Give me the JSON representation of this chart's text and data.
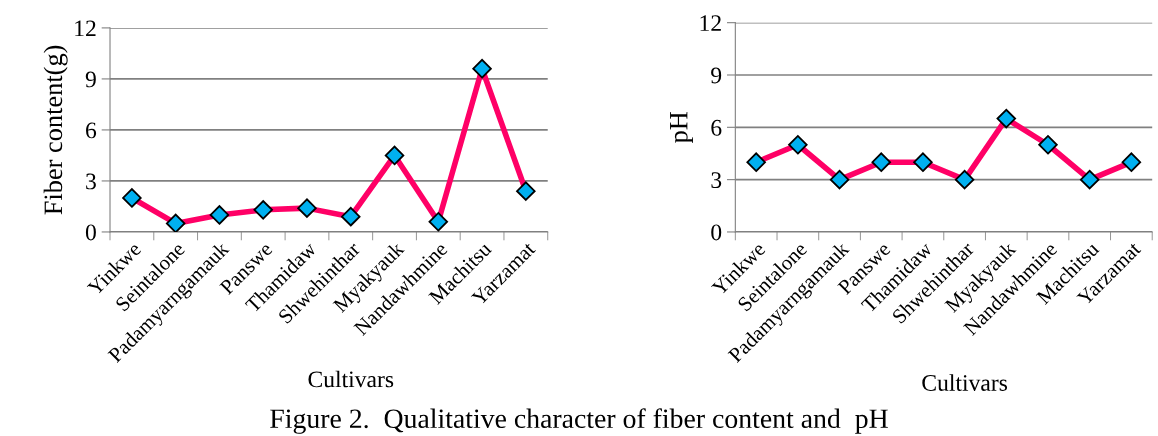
{
  "chart_data": [
    {
      "type": "line",
      "xlabel": "Cultivars",
      "ylabel": "Fiber content(g)",
      "categories": [
        "Yinkwe",
        "Seintalone",
        "Padamyarngamauk",
        "Panswe",
        "Thamidaw",
        "Shwehinthar",
        "Myakyauk",
        "Nandawhmine",
        "Machitsu",
        "Yarzamat"
      ],
      "series": [
        {
          "color": "#ff0066",
          "values": [
            2.0,
            0.5,
            1.0,
            1.3,
            1.4,
            0.9,
            4.5,
            0.6,
            9.6,
            2.4
          ]
        }
      ],
      "ylim": [
        0,
        12
      ],
      "yticks": [
        0,
        3,
        6,
        9,
        12
      ],
      "grid": "y",
      "marker": "diamond",
      "line_style": "solid",
      "annotations": [
        "Figure 2.  Qualitative character of fiber content and  pH"
      ]
    },
    {
      "type": "line",
      "xlabel": "Cultivars",
      "ylabel": "pH",
      "categories": [
        "Yinkwe",
        "Seintalone",
        "Padamyarngamauk",
        "Panswe",
        "Thamidaw",
        "Shwehinthar",
        "Myakyauk",
        "Nandawhmine",
        "Machitsu",
        "Yarzamat"
      ],
      "series": [
        {
          "color": "#ff0066",
          "values": [
            4,
            5,
            3,
            4,
            4,
            3,
            6.5,
            5,
            3,
            4
          ]
        }
      ],
      "ylim": [
        0,
        12
      ],
      "yticks": [
        0,
        3,
        6,
        9,
        12
      ],
      "grid": "y",
      "marker": "diamond",
      "line_style": "solid"
    }
  ]
}
